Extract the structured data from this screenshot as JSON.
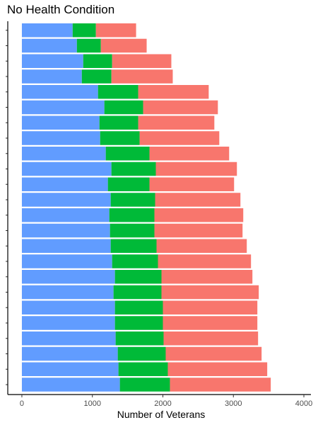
{
  "chart_data": {
    "type": "bar",
    "orientation": "horizontal",
    "stacked": true,
    "title": "No Health Condition",
    "xlabel": "Number of Veterans",
    "ylabel": "",
    "xlim": [
      -200,
      4100
    ],
    "x_ticks": [
      0,
      1000,
      2000,
      3000,
      4000
    ],
    "grid": false,
    "legend": "none",
    "category_count": 24,
    "series": [
      {
        "color": "#619CFF",
        "values": [
          720,
          780,
          870,
          850,
          1080,
          1170,
          1100,
          1110,
          1190,
          1270,
          1220,
          1260,
          1240,
          1250,
          1260,
          1280,
          1320,
          1300,
          1320,
          1320,
          1330,
          1360,
          1370,
          1390
        ]
      },
      {
        "color": "#00BA38",
        "values": [
          330,
          340,
          410,
          420,
          570,
          550,
          550,
          560,
          620,
          630,
          590,
          630,
          640,
          630,
          650,
          650,
          660,
          680,
          680,
          680,
          680,
          680,
          700,
          710
        ]
      },
      {
        "color": "#F8766D",
        "values": [
          570,
          650,
          840,
          870,
          1000,
          1060,
          1080,
          1130,
          1130,
          1150,
          1200,
          1210,
          1260,
          1250,
          1280,
          1320,
          1290,
          1380,
          1340,
          1340,
          1340,
          1360,
          1410,
          1430
        ]
      }
    ]
  }
}
